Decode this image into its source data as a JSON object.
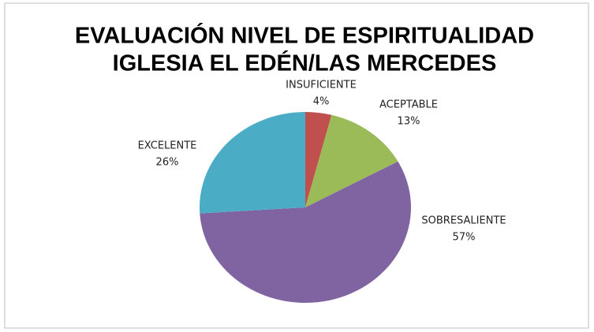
{
  "chart_data": {
    "type": "pie",
    "title": [
      "EVALUACIÓN NIVEL DE ESPIRITUALIDAD",
      "IGLESIA EL EDÉN/LAS MERCEDES"
    ],
    "categories": [
      "INSUFICIENTE",
      "ACEPTABLE",
      "SOBRESALIENTE",
      "EXCELENTE"
    ],
    "values": [
      4,
      13,
      57,
      26
    ],
    "value_labels": [
      "4%",
      "13%",
      "57%",
      "26%"
    ],
    "colors": [
      "#c0504d",
      "#9bbb59",
      "#8064a2",
      "#4bacc6"
    ]
  }
}
